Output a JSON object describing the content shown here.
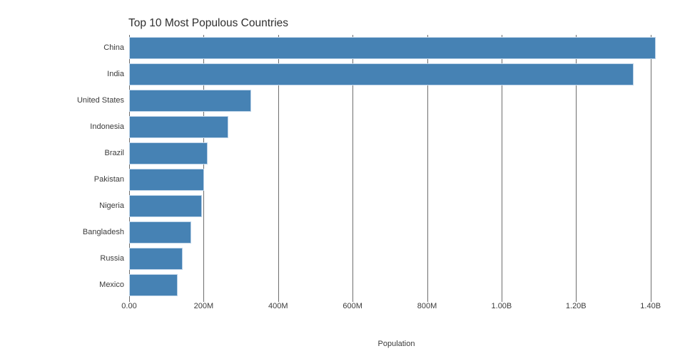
{
  "chart_data": {
    "type": "bar",
    "orientation": "horizontal",
    "title": "Top 10 Most Populous Countries",
    "xlabel": "Population",
    "ylabel": "",
    "categories": [
      "China",
      "India",
      "United States",
      "Indonesia",
      "Brazil",
      "Pakistan",
      "Nigeria",
      "Bangladesh",
      "Russia",
      "Mexico"
    ],
    "values_millions": [
      1415.0,
      1354.1,
      326.8,
      266.8,
      210.9,
      200.8,
      195.9,
      166.4,
      144.0,
      130.8
    ],
    "x_ticks": [
      {
        "value_millions": 0,
        "label": "0.00"
      },
      {
        "value_millions": 200,
        "label": "200M"
      },
      {
        "value_millions": 400,
        "label": "400M"
      },
      {
        "value_millions": 600,
        "label": "600M"
      },
      {
        "value_millions": 800,
        "label": "800M"
      },
      {
        "value_millions": 1000,
        "label": "1.00B"
      },
      {
        "value_millions": 1200,
        "label": "1.20B"
      },
      {
        "value_millions": 1400,
        "label": "1.40B"
      }
    ],
    "xlim_millions": [
      0,
      1435
    ],
    "grid": "vertical-only",
    "legend": "none",
    "colors": {
      "bar_fill": "#4682B4",
      "bar_edge": "#bdd3e8",
      "gridline": "#6e6e6e",
      "text": "#3b3b3b",
      "title_text": "#2f2f2f",
      "background": "#ffffff"
    }
  }
}
